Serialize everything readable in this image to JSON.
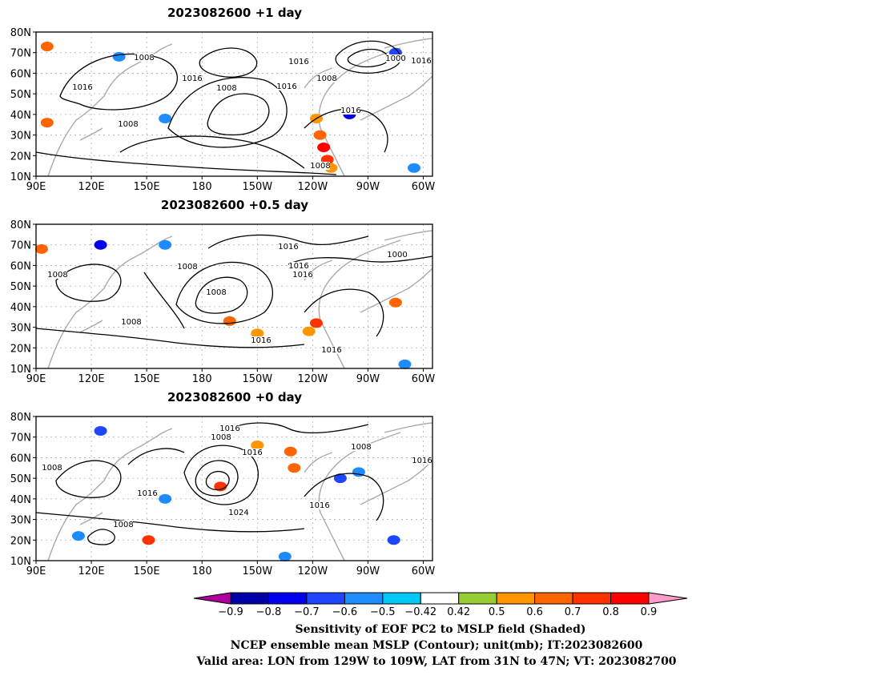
{
  "panels": [
    {
      "id": "p1",
      "title": "2023082600  +1 day",
      "contour_labels": [
        "1008",
        "1016",
        "1016",
        "1008",
        "1016",
        "1000",
        "1016",
        "1016",
        "1008",
        "1016",
        "1008",
        "1008"
      ],
      "shading": [
        {
          "lon": 244,
          "lat": 30,
          "level": 0.6
        },
        {
          "lon": 246,
          "lat": 24,
          "level": 0.8
        },
        {
          "lon": 248,
          "lat": 18,
          "level": 0.7
        },
        {
          "lon": 242,
          "lat": 38,
          "level": 0.5
        },
        {
          "lon": 96,
          "lat": 73,
          "level": 0.6
        },
        {
          "lon": 96,
          "lat": 36,
          "level": 0.6
        },
        {
          "lon": 250,
          "lat": 14,
          "level": 0.5
        },
        {
          "lon": 135,
          "lat": 68,
          "level": -0.5
        },
        {
          "lon": 260,
          "lat": 40,
          "level": -0.7
        },
        {
          "lon": 285,
          "lat": 70,
          "level": -0.6
        },
        {
          "lon": 295,
          "lat": 14,
          "level": -0.5
        },
        {
          "lon": 160,
          "lat": 38,
          "level": -0.5
        }
      ]
    },
    {
      "id": "p2",
      "title": "2023082600  +0.5 day",
      "contour_labels": [
        "1008",
        "1016",
        "1008",
        "1016",
        "1008",
        "1016",
        "1000",
        "1008",
        "1016",
        "1016"
      ],
      "shading": [
        {
          "lon": 242,
          "lat": 32,
          "level": 0.7
        },
        {
          "lon": 238,
          "lat": 28,
          "level": 0.5
        },
        {
          "lon": 195,
          "lat": 33,
          "level": 0.6
        },
        {
          "lon": 210,
          "lat": 27,
          "level": 0.5
        },
        {
          "lon": 93,
          "lat": 68,
          "level": 0.6
        },
        {
          "lon": 285,
          "lat": 42,
          "level": 0.6
        },
        {
          "lon": 125,
          "lat": 70,
          "level": -0.7
        },
        {
          "lon": 160,
          "lat": 70,
          "level": -0.5
        },
        {
          "lon": 290,
          "lat": 12,
          "level": -0.5
        }
      ]
    },
    {
      "id": "p3",
      "title": "2023082600  +0 day",
      "contour_labels": [
        "1016",
        "1008",
        "1016",
        "1008",
        "1008",
        "1016",
        "1024",
        "1016",
        "1016",
        "1008"
      ],
      "shading": [
        {
          "lon": 151,
          "lat": 20,
          "level": 0.7
        },
        {
          "lon": 190,
          "lat": 46,
          "level": 0.7
        },
        {
          "lon": 228,
          "lat": 63,
          "level": 0.6
        },
        {
          "lon": 210,
          "lat": 66,
          "level": 0.5
        },
        {
          "lon": 230,
          "lat": 55,
          "level": 0.6
        },
        {
          "lon": 125,
          "lat": 73,
          "level": -0.6
        },
        {
          "lon": 113,
          "lat": 22,
          "level": -0.5
        },
        {
          "lon": 255,
          "lat": 50,
          "level": -0.6
        },
        {
          "lon": 265,
          "lat": 53,
          "level": -0.5
        },
        {
          "lon": 284,
          "lat": 20,
          "level": -0.6
        },
        {
          "lon": 160,
          "lat": 40,
          "level": -0.5
        },
        {
          "lon": 225,
          "lat": 12,
          "level": -0.5
        }
      ]
    }
  ],
  "axes": {
    "lat_labels": [
      "80N",
      "70N",
      "60N",
      "50N",
      "40N",
      "30N",
      "20N",
      "10N"
    ],
    "lon_labels": [
      "90E",
      "120E",
      "150E",
      "180",
      "150W",
      "120W",
      "90W",
      "60W"
    ]
  },
  "colorbar": {
    "tick_labels": [
      "−0.9",
      "−0.8",
      "−0.7",
      "−0.6",
      "−0.5",
      "−0.42",
      "0.42",
      "0.5",
      "0.6",
      "0.7",
      "0.8",
      "0.9"
    ],
    "colors": [
      "#b0009b",
      "#0000a8",
      "#0000ee",
      "#1e46ff",
      "#1e8cff",
      "#00c8f5",
      "#ffffff",
      "#96cd32",
      "#ff9600",
      "#ff6400",
      "#ff3200",
      "#ff0000",
      "#ff9bc8"
    ]
  },
  "captions": {
    "line1": "Sensitivity of EOF PC2 to MSLP field (Shaded)",
    "line2": "NCEP ensemble mean MSLP (Contour); unit(mb); IT:2023082600",
    "line3": "Valid area: LON from 129W to 109W, LAT from 31N to 47N; VT: 2023082700"
  }
}
